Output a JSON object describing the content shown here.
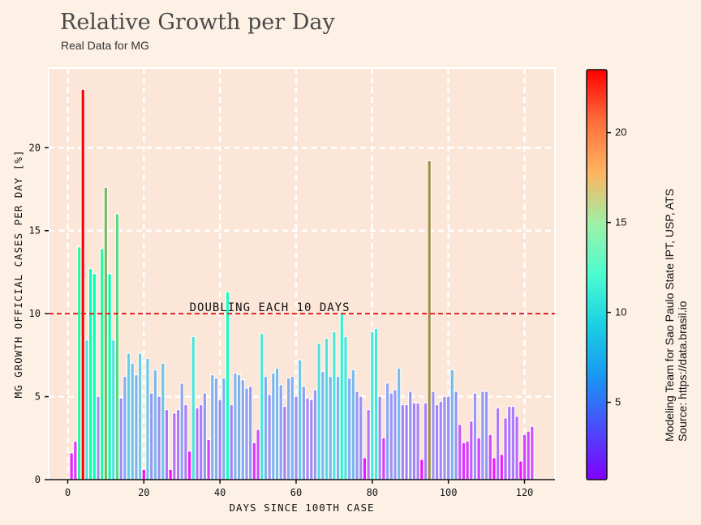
{
  "header": {
    "title": "Relative Growth per Day",
    "subtitle": "Real Data for MG"
  },
  "annotation": {
    "label": "DOUBLING EACH 10 DAYS",
    "y": 10,
    "color": "#e0201b"
  },
  "credit": {
    "line1": "Modeling Team for Sao Paulo State IPT, USP, ATS",
    "line2": "Source: https://data.brasil.io"
  },
  "colorbar": {
    "min": 0.7,
    "max": 23.5,
    "ticks": [
      5,
      10,
      15,
      20
    ],
    "tick_labels": [
      "5",
      "10",
      "15",
      "20"
    ],
    "colormap": "rainbow"
  },
  "chart_data": {
    "type": "bar",
    "title": "Relative Growth per Day",
    "subtitle": "Real Data for MG",
    "xlabel": "DAYS SINCE 100TH CASE",
    "ylabel": "MG GROWTH OFFICIAL CASES PER DAY [%]",
    "xlim": [
      -5,
      128
    ],
    "ylim": [
      0,
      24.8
    ],
    "xticks": [
      0,
      20,
      40,
      60,
      80,
      100,
      120
    ],
    "xtick_labels": [
      "0",
      "20",
      "40",
      "60",
      "80",
      "100",
      "120"
    ],
    "yticks": [
      0,
      5,
      10,
      15,
      20
    ],
    "ytick_labels": [
      "0",
      "5",
      "10",
      "15",
      "20"
    ],
    "grid": true,
    "x": [
      1,
      2,
      3,
      4,
      5,
      6,
      7,
      8,
      9,
      10,
      11,
      12,
      13,
      14,
      15,
      16,
      17,
      18,
      19,
      20,
      21,
      22,
      23,
      24,
      25,
      26,
      27,
      28,
      29,
      30,
      31,
      32,
      33,
      34,
      35,
      36,
      37,
      38,
      39,
      40,
      41,
      42,
      43,
      44,
      45,
      46,
      47,
      48,
      49,
      50,
      51,
      52,
      53,
      54,
      55,
      56,
      57,
      58,
      59,
      60,
      61,
      62,
      63,
      64,
      65,
      66,
      67,
      68,
      69,
      70,
      71,
      72,
      73,
      74,
      75,
      76,
      77,
      78,
      79,
      80,
      81,
      82,
      83,
      84,
      85,
      86,
      87,
      88,
      89,
      90,
      91,
      92,
      93,
      94,
      95,
      96,
      97,
      98,
      99,
      100,
      101,
      102,
      103,
      104,
      105,
      106,
      107,
      108,
      109,
      110,
      111,
      112,
      113,
      114,
      115,
      116,
      117,
      118,
      119,
      120,
      121,
      122
    ],
    "values": [
      1.6,
      2.3,
      14.0,
      23.5,
      8.4,
      12.7,
      12.4,
      5.0,
      13.9,
      17.6,
      12.4,
      8.4,
      16.0,
      4.9,
      6.2,
      7.6,
      7.0,
      6.3,
      7.6,
      0.6,
      7.3,
      5.2,
      6.6,
      5.0,
      7.0,
      4.2,
      0.6,
      4.0,
      4.2,
      5.8,
      4.5,
      1.7,
      8.6,
      4.3,
      4.5,
      5.2,
      2.4,
      6.3,
      6.1,
      4.8,
      6.1,
      11.3,
      4.5,
      6.4,
      6.3,
      6.0,
      5.5,
      5.6,
      2.2,
      3.0,
      8.8,
      6.2,
      5.1,
      6.4,
      6.7,
      5.7,
      4.4,
      6.1,
      6.2,
      5.0,
      7.2,
      5.6,
      4.9,
      4.8,
      5.4,
      8.2,
      6.5,
      8.5,
      6.2,
      8.9,
      6.2,
      10.0,
      8.6,
      6.1,
      6.6,
      5.3,
      5.0,
      1.3,
      4.2,
      8.9,
      9.1,
      5.0,
      2.5,
      5.8,
      5.2,
      5.4,
      6.7,
      4.5,
      4.5,
      5.3,
      4.6,
      4.6,
      1.2,
      4.6,
      19.2,
      5.3,
      4.5,
      4.7,
      5.0,
      5.0,
      6.6,
      5.3,
      3.3,
      2.2,
      2.3,
      3.5,
      5.2,
      2.5,
      5.3,
      5.3,
      2.7,
      1.3,
      4.3,
      1.5,
      3.7,
      4.4,
      4.4,
      3.8,
      1.1,
      2.7,
      2.9,
      3.2
    ]
  }
}
